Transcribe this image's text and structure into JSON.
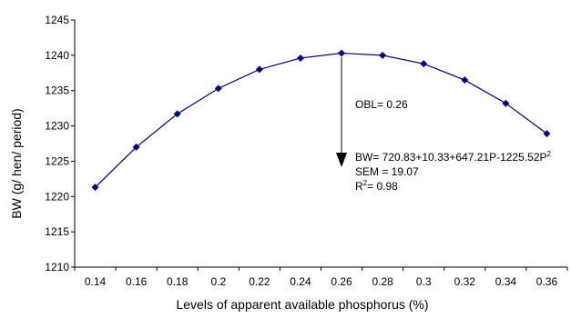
{
  "chart_data": {
    "type": "line",
    "title": "",
    "xlabel": "Levels of apparent available phosphorus (%)",
    "ylabel": "BW (g/ hen/ period)",
    "x": [
      0.14,
      0.16,
      0.18,
      0.2,
      0.22,
      0.24,
      0.26,
      0.28,
      0.3,
      0.32,
      0.34,
      0.36
    ],
    "x_tick_labels": [
      "0.14",
      "0.16",
      "0.18",
      "0.2",
      "0.22",
      "0.24",
      "0.26",
      "0.28",
      "0.3",
      "0.32",
      "0.34",
      "0.36"
    ],
    "y_ticks": [
      1210,
      1215,
      1220,
      1225,
      1230,
      1235,
      1240,
      1245
    ],
    "ylim": [
      1210,
      1245
    ],
    "grid": false,
    "legend": "none",
    "series": [
      {
        "values": [
          1221.3,
          1227.0,
          1231.7,
          1235.3,
          1238.0,
          1239.6,
          1240.3,
          1240.0,
          1238.8,
          1236.5,
          1233.2,
          1228.9
        ]
      }
    ],
    "line_color": "#000080",
    "marker_color": "#000080",
    "annotations": {
      "obl": "OBL= 0.26",
      "obl_x": 0.26,
      "equation": "BW= 720.83+10.33+647.21P-1225.52P",
      "equation_sup": "2",
      "sem": "SEM = 19.07",
      "r2_prefix": "R",
      "r2_sup": "2",
      "r2_suffix": "=  0.98"
    }
  }
}
